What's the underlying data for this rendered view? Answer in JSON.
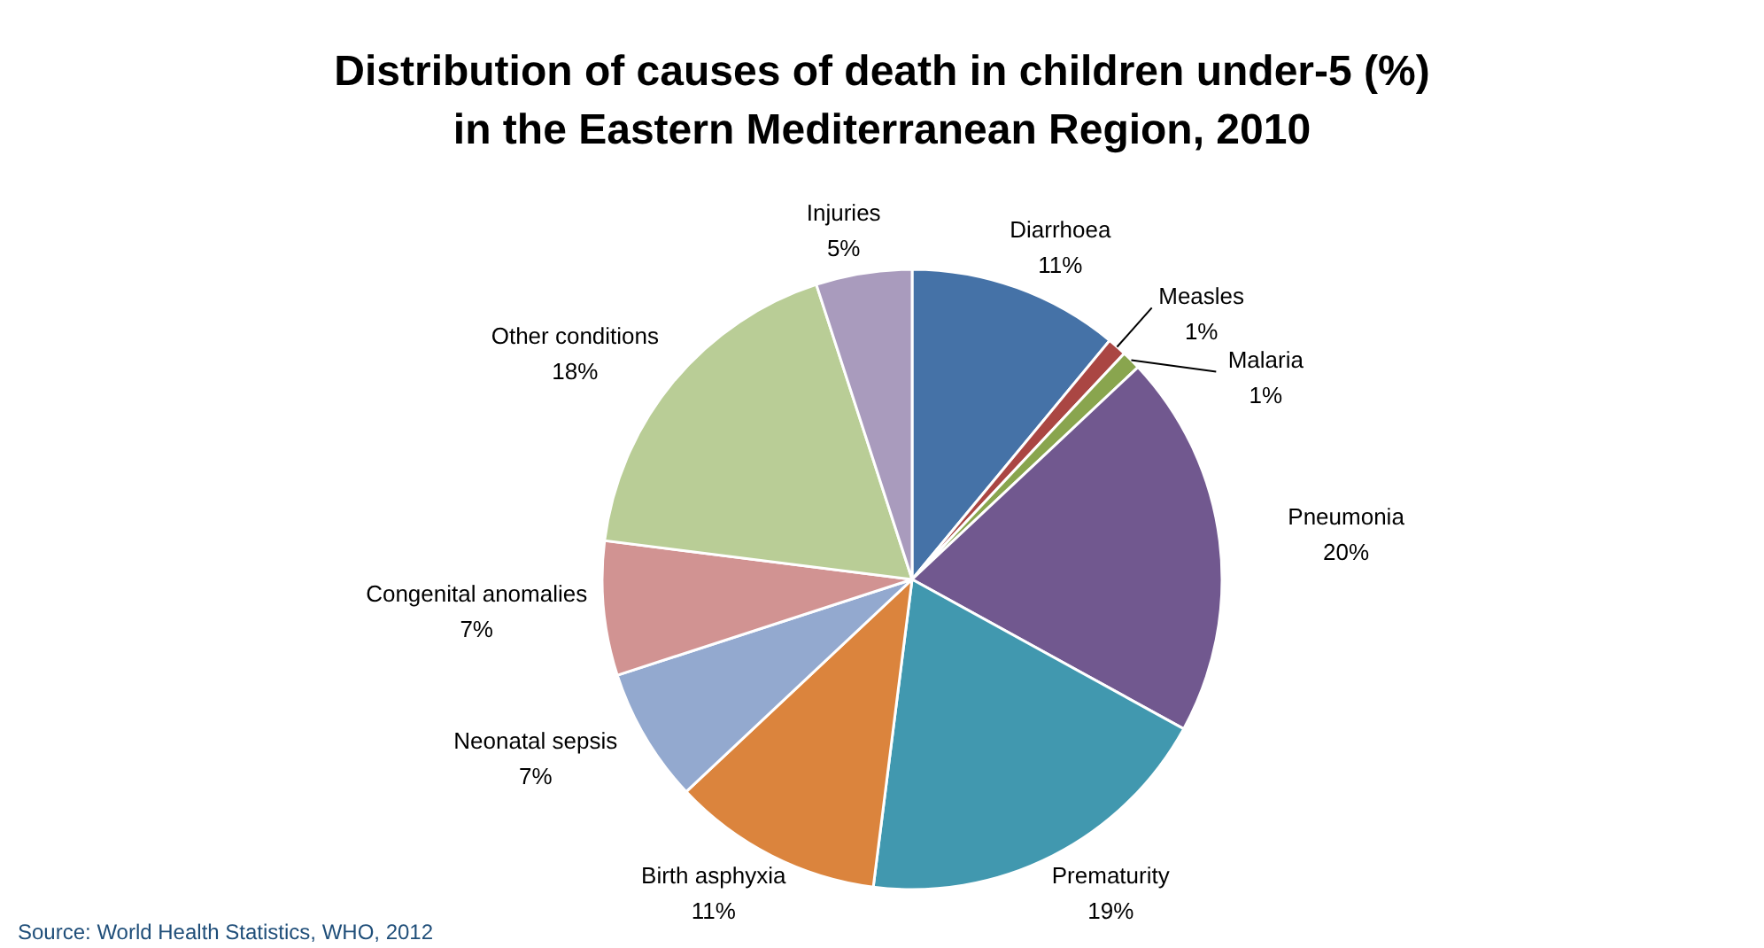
{
  "chart_data": {
    "type": "pie",
    "title": "Distribution of causes of death in children under-5 (%)\nin the Eastern Mediterranean Region, 2010",
    "categories": [
      "Diarrhoea",
      "Measles",
      "Malaria",
      "Pneumonia",
      "Prematurity",
      "Birth asphyxia",
      "Neonatal sepsis",
      "Congenital anomalies",
      "Other conditions",
      "Injuries"
    ],
    "values": [
      11,
      1,
      1,
      20,
      19,
      11,
      7,
      7,
      18,
      5
    ],
    "value_labels": [
      "11%",
      "1%",
      "1%",
      "20%",
      "19%",
      "11%",
      "7%",
      "7%",
      "18%",
      "5%"
    ],
    "colors": [
      "#4572a7",
      "#aa4643",
      "#89a54e",
      "#71588f",
      "#4198af",
      "#db843d",
      "#93a9cf",
      "#d19392",
      "#b9cd96",
      "#a99bbd"
    ],
    "annotations": [
      "Source: World Health Statistics, WHO, 2012"
    ]
  }
}
